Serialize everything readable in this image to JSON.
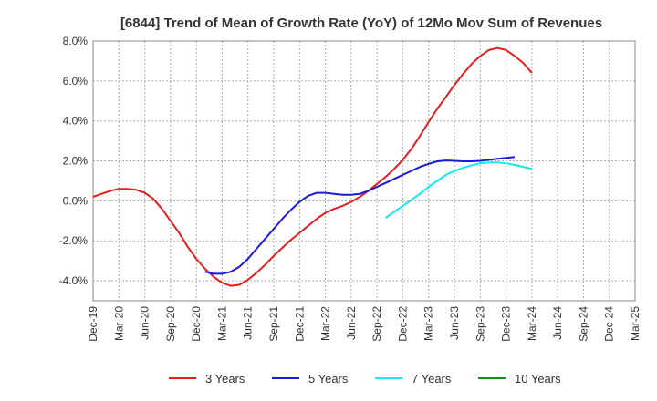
{
  "chart_data": {
    "type": "line",
    "title": "[6844]  Trend of Mean of Growth Rate (YoY) of 12Mo Mov Sum of Revenues",
    "xlabel": "",
    "ylabel": "",
    "ylim": [
      -5,
      8
    ],
    "y_ticks": [
      8,
      6,
      4,
      2,
      0,
      -2,
      -4
    ],
    "y_tick_labels": [
      "8.0%",
      "6.0%",
      "4.0%",
      "2.0%",
      "0.0%",
      "-2.0%",
      "-4.0%"
    ],
    "x_tick_labels": [
      "Dec-19",
      "Mar-20",
      "Jun-20",
      "Sep-20",
      "Dec-20",
      "Mar-21",
      "Jun-21",
      "Sep-21",
      "Dec-21",
      "Mar-22",
      "Jun-22",
      "Sep-22",
      "Dec-22",
      "Mar-23",
      "Jun-23",
      "Sep-23",
      "Dec-23",
      "Mar-24",
      "Jun-24",
      "Sep-24",
      "Dec-24",
      "Mar-25"
    ],
    "grid": true,
    "legend_position": "bottom",
    "series": [
      {
        "name": "3 Years",
        "color": "#e02020",
        "points": [
          [
            0,
            0.2
          ],
          [
            1,
            0.35
          ],
          [
            2,
            0.5
          ],
          [
            3,
            0.6
          ],
          [
            4,
            0.6
          ],
          [
            5,
            0.55
          ],
          [
            6,
            0.4
          ],
          [
            7,
            0.1
          ],
          [
            8,
            -0.4
          ],
          [
            9,
            -1.0
          ],
          [
            10,
            -1.6
          ],
          [
            11,
            -2.3
          ],
          [
            12,
            -2.9
          ],
          [
            13,
            -3.4
          ],
          [
            14,
            -3.8
          ],
          [
            15,
            -4.1
          ],
          [
            16,
            -4.25
          ],
          [
            17,
            -4.2
          ],
          [
            18,
            -3.95
          ],
          [
            19,
            -3.6
          ],
          [
            20,
            -3.2
          ],
          [
            21,
            -2.75
          ],
          [
            22,
            -2.35
          ],
          [
            23,
            -1.95
          ],
          [
            24,
            -1.6
          ],
          [
            25,
            -1.25
          ],
          [
            26,
            -0.9
          ],
          [
            27,
            -0.6
          ],
          [
            28,
            -0.4
          ],
          [
            29,
            -0.25
          ],
          [
            30,
            -0.05
          ],
          [
            31,
            0.2
          ],
          [
            32,
            0.5
          ],
          [
            33,
            0.85
          ],
          [
            34,
            1.2
          ],
          [
            35,
            1.6
          ],
          [
            36,
            2.05
          ],
          [
            37,
            2.6
          ],
          [
            38,
            3.25
          ],
          [
            39,
            3.95
          ],
          [
            40,
            4.6
          ],
          [
            41,
            5.2
          ],
          [
            42,
            5.8
          ],
          [
            43,
            6.35
          ],
          [
            44,
            6.85
          ],
          [
            45,
            7.25
          ],
          [
            46,
            7.55
          ],
          [
            47,
            7.65
          ],
          [
            48,
            7.55
          ],
          [
            49,
            7.25
          ],
          [
            50,
            6.9
          ],
          [
            51,
            6.4
          ]
        ]
      },
      {
        "name": "5 Years",
        "color": "#1a1ad8",
        "points": [
          [
            13,
            -3.55
          ],
          [
            14,
            -3.65
          ],
          [
            15,
            -3.65
          ],
          [
            16,
            -3.55
          ],
          [
            17,
            -3.3
          ],
          [
            18,
            -2.9
          ],
          [
            19,
            -2.4
          ],
          [
            20,
            -1.9
          ],
          [
            21,
            -1.4
          ],
          [
            22,
            -0.9
          ],
          [
            23,
            -0.45
          ],
          [
            24,
            -0.05
          ],
          [
            25,
            0.25
          ],
          [
            26,
            0.4
          ],
          [
            27,
            0.4
          ],
          [
            28,
            0.35
          ],
          [
            29,
            0.3
          ],
          [
            30,
            0.3
          ],
          [
            31,
            0.35
          ],
          [
            32,
            0.5
          ],
          [
            33,
            0.7
          ],
          [
            34,
            0.9
          ],
          [
            35,
            1.1
          ],
          [
            36,
            1.3
          ],
          [
            37,
            1.5
          ],
          [
            38,
            1.7
          ],
          [
            39,
            1.85
          ],
          [
            40,
            1.98
          ],
          [
            41,
            2.02
          ],
          [
            42,
            2.0
          ],
          [
            43,
            1.98
          ],
          [
            44,
            1.98
          ],
          [
            45,
            2.0
          ],
          [
            46,
            2.05
          ],
          [
            47,
            2.1
          ],
          [
            48,
            2.15
          ],
          [
            49,
            2.2
          ]
        ]
      },
      {
        "name": "7 Years",
        "color": "#18e8f0",
        "points": [
          [
            34,
            -0.85
          ],
          [
            35,
            -0.55
          ],
          [
            36,
            -0.25
          ],
          [
            37,
            0.05
          ],
          [
            38,
            0.35
          ],
          [
            39,
            0.7
          ],
          [
            40,
            1.0
          ],
          [
            41,
            1.3
          ],
          [
            42,
            1.5
          ],
          [
            43,
            1.65
          ],
          [
            44,
            1.78
          ],
          [
            45,
            1.88
          ],
          [
            46,
            1.92
          ],
          [
            47,
            1.92
          ],
          [
            48,
            1.88
          ],
          [
            49,
            1.8
          ],
          [
            50,
            1.7
          ],
          [
            51,
            1.6
          ]
        ]
      },
      {
        "name": "10 Years",
        "color": "#1e8a1e",
        "points": []
      }
    ]
  }
}
